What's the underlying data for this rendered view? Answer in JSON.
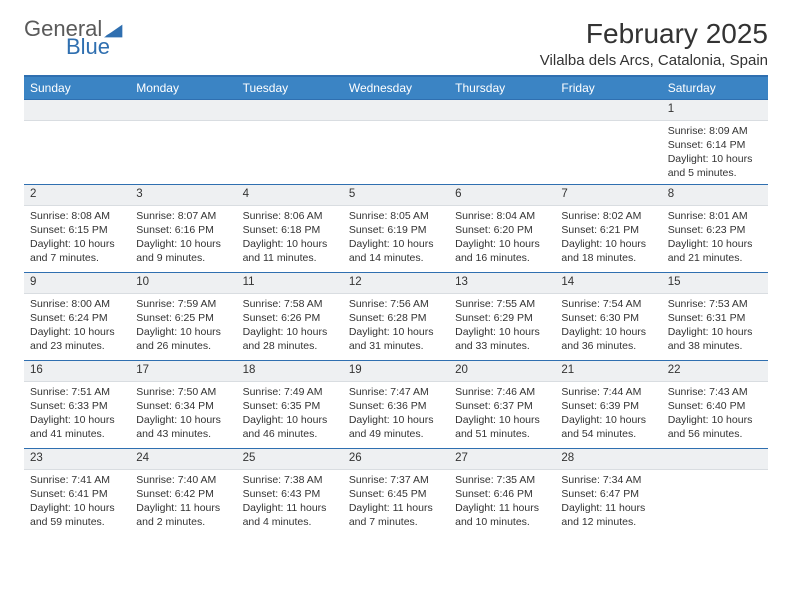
{
  "brand": {
    "word1": "General",
    "word2": "Blue",
    "word1_color": "#5a5a5a",
    "word2_color": "#2f6fb0"
  },
  "header": {
    "month_title": "February 2025",
    "location": "Vilalba dels Arcs, Catalonia, Spain"
  },
  "style": {
    "accent": "#3b84c4",
    "rule": "#2f6fb0",
    "daynum_bg": "#eef0f2",
    "body_bg": "#ffffff",
    "text": "#333333",
    "header_fontsize": 28,
    "location_fontsize": 15,
    "dayheader_fontsize": 12,
    "cell_fontsize": 10.5
  },
  "calendar": {
    "type": "table",
    "columns": [
      "Sunday",
      "Monday",
      "Tuesday",
      "Wednesday",
      "Thursday",
      "Friday",
      "Saturday"
    ],
    "weeks": [
      [
        null,
        null,
        null,
        null,
        null,
        null,
        {
          "num": "1",
          "sunrise": "Sunrise: 8:09 AM",
          "sunset": "Sunset: 6:14 PM",
          "daylight": "Daylight: 10 hours and 5 minutes."
        }
      ],
      [
        {
          "num": "2",
          "sunrise": "Sunrise: 8:08 AM",
          "sunset": "Sunset: 6:15 PM",
          "daylight": "Daylight: 10 hours and 7 minutes."
        },
        {
          "num": "3",
          "sunrise": "Sunrise: 8:07 AM",
          "sunset": "Sunset: 6:16 PM",
          "daylight": "Daylight: 10 hours and 9 minutes."
        },
        {
          "num": "4",
          "sunrise": "Sunrise: 8:06 AM",
          "sunset": "Sunset: 6:18 PM",
          "daylight": "Daylight: 10 hours and 11 minutes."
        },
        {
          "num": "5",
          "sunrise": "Sunrise: 8:05 AM",
          "sunset": "Sunset: 6:19 PM",
          "daylight": "Daylight: 10 hours and 14 minutes."
        },
        {
          "num": "6",
          "sunrise": "Sunrise: 8:04 AM",
          "sunset": "Sunset: 6:20 PM",
          "daylight": "Daylight: 10 hours and 16 minutes."
        },
        {
          "num": "7",
          "sunrise": "Sunrise: 8:02 AM",
          "sunset": "Sunset: 6:21 PM",
          "daylight": "Daylight: 10 hours and 18 minutes."
        },
        {
          "num": "8",
          "sunrise": "Sunrise: 8:01 AM",
          "sunset": "Sunset: 6:23 PM",
          "daylight": "Daylight: 10 hours and 21 minutes."
        }
      ],
      [
        {
          "num": "9",
          "sunrise": "Sunrise: 8:00 AM",
          "sunset": "Sunset: 6:24 PM",
          "daylight": "Daylight: 10 hours and 23 minutes."
        },
        {
          "num": "10",
          "sunrise": "Sunrise: 7:59 AM",
          "sunset": "Sunset: 6:25 PM",
          "daylight": "Daylight: 10 hours and 26 minutes."
        },
        {
          "num": "11",
          "sunrise": "Sunrise: 7:58 AM",
          "sunset": "Sunset: 6:26 PM",
          "daylight": "Daylight: 10 hours and 28 minutes."
        },
        {
          "num": "12",
          "sunrise": "Sunrise: 7:56 AM",
          "sunset": "Sunset: 6:28 PM",
          "daylight": "Daylight: 10 hours and 31 minutes."
        },
        {
          "num": "13",
          "sunrise": "Sunrise: 7:55 AM",
          "sunset": "Sunset: 6:29 PM",
          "daylight": "Daylight: 10 hours and 33 minutes."
        },
        {
          "num": "14",
          "sunrise": "Sunrise: 7:54 AM",
          "sunset": "Sunset: 6:30 PM",
          "daylight": "Daylight: 10 hours and 36 minutes."
        },
        {
          "num": "15",
          "sunrise": "Sunrise: 7:53 AM",
          "sunset": "Sunset: 6:31 PM",
          "daylight": "Daylight: 10 hours and 38 minutes."
        }
      ],
      [
        {
          "num": "16",
          "sunrise": "Sunrise: 7:51 AM",
          "sunset": "Sunset: 6:33 PM",
          "daylight": "Daylight: 10 hours and 41 minutes."
        },
        {
          "num": "17",
          "sunrise": "Sunrise: 7:50 AM",
          "sunset": "Sunset: 6:34 PM",
          "daylight": "Daylight: 10 hours and 43 minutes."
        },
        {
          "num": "18",
          "sunrise": "Sunrise: 7:49 AM",
          "sunset": "Sunset: 6:35 PM",
          "daylight": "Daylight: 10 hours and 46 minutes."
        },
        {
          "num": "19",
          "sunrise": "Sunrise: 7:47 AM",
          "sunset": "Sunset: 6:36 PM",
          "daylight": "Daylight: 10 hours and 49 minutes."
        },
        {
          "num": "20",
          "sunrise": "Sunrise: 7:46 AM",
          "sunset": "Sunset: 6:37 PM",
          "daylight": "Daylight: 10 hours and 51 minutes."
        },
        {
          "num": "21",
          "sunrise": "Sunrise: 7:44 AM",
          "sunset": "Sunset: 6:39 PM",
          "daylight": "Daylight: 10 hours and 54 minutes."
        },
        {
          "num": "22",
          "sunrise": "Sunrise: 7:43 AM",
          "sunset": "Sunset: 6:40 PM",
          "daylight": "Daylight: 10 hours and 56 minutes."
        }
      ],
      [
        {
          "num": "23",
          "sunrise": "Sunrise: 7:41 AM",
          "sunset": "Sunset: 6:41 PM",
          "daylight": "Daylight: 10 hours and 59 minutes."
        },
        {
          "num": "24",
          "sunrise": "Sunrise: 7:40 AM",
          "sunset": "Sunset: 6:42 PM",
          "daylight": "Daylight: 11 hours and 2 minutes."
        },
        {
          "num": "25",
          "sunrise": "Sunrise: 7:38 AM",
          "sunset": "Sunset: 6:43 PM",
          "daylight": "Daylight: 11 hours and 4 minutes."
        },
        {
          "num": "26",
          "sunrise": "Sunrise: 7:37 AM",
          "sunset": "Sunset: 6:45 PM",
          "daylight": "Daylight: 11 hours and 7 minutes."
        },
        {
          "num": "27",
          "sunrise": "Sunrise: 7:35 AM",
          "sunset": "Sunset: 6:46 PM",
          "daylight": "Daylight: 11 hours and 10 minutes."
        },
        {
          "num": "28",
          "sunrise": "Sunrise: 7:34 AM",
          "sunset": "Sunset: 6:47 PM",
          "daylight": "Daylight: 11 hours and 12 minutes."
        },
        null
      ]
    ]
  }
}
